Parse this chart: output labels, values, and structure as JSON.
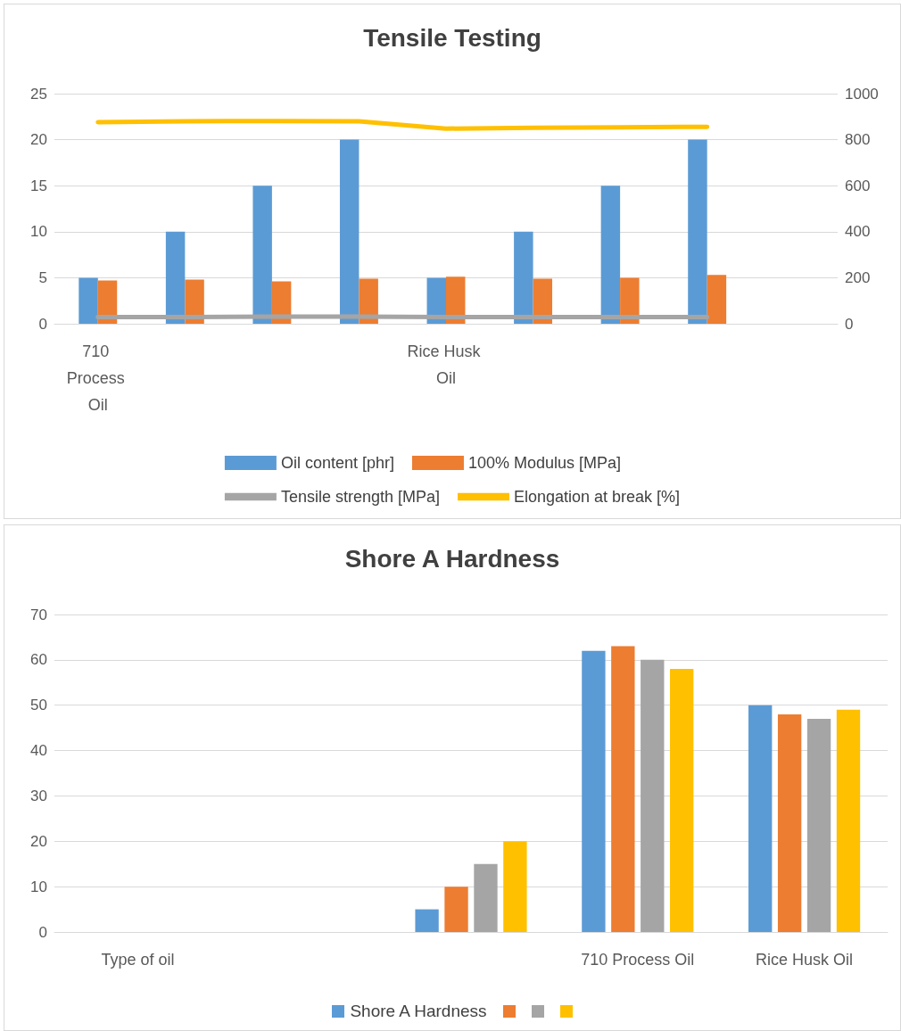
{
  "chart_data": [
    {
      "type": "bar",
      "title": "Tensile Testing",
      "categories": [
        "710 Process Oil",
        null,
        null,
        null,
        "Rice Husk Oil",
        null,
        null,
        null,
        null
      ],
      "series": [
        {
          "name": "Oil content [phr]",
          "color": "#5b9bd5",
          "values": [
            5,
            10,
            15,
            20,
            5,
            10,
            15,
            20,
            null
          ]
        },
        {
          "name": "100% Modulus [MPa]",
          "color": "#ed7d31",
          "values": [
            4.7,
            4.8,
            4.6,
            4.9,
            5.1,
            4.9,
            5.0,
            5.3,
            null
          ]
        },
        {
          "name": "Tensile strength [MPa]",
          "type": "line",
          "axis": "y2",
          "color": "#a5a5a5",
          "values": [
            29,
            29,
            31,
            31,
            29,
            29,
            29,
            29,
            null
          ]
        },
        {
          "name": "Elongation at break [%]",
          "type": "line",
          "axis": "y2",
          "color": "#ffc000",
          "values": [
            876,
            880,
            881,
            880,
            848,
            852,
            854,
            856,
            null
          ]
        }
      ],
      "ylim": [
        0,
        25
      ],
      "yticks": [
        0,
        5,
        10,
        15,
        20,
        25
      ],
      "y2lim": [
        0,
        1000
      ],
      "y2ticks": [
        0,
        200,
        400,
        600,
        800,
        1000
      ],
      "grid": "y",
      "legend": "bottom",
      "marker": "none"
    },
    {
      "type": "bar",
      "title": "Shore A Hardness",
      "categories": [
        "Type of oil",
        null,
        null,
        "710 Process Oil",
        "Rice Husk Oil"
      ],
      "series": [
        {
          "name": "Shore A Hardness",
          "color": "#5b9bd5",
          "values": [
            null,
            null,
            5,
            62,
            50
          ]
        },
        {
          "color": "#ed7d31",
          "values": [
            null,
            null,
            10,
            63,
            48
          ]
        },
        {
          "color": "#a5a5a5",
          "values": [
            null,
            null,
            15,
            60,
            47
          ]
        },
        {
          "color": "#ffc000",
          "values": [
            null,
            null,
            20,
            58,
            49
          ]
        }
      ],
      "ylim": [
        0,
        70
      ],
      "yticks": [
        0,
        10,
        20,
        30,
        40,
        50,
        60,
        70
      ],
      "grid": "y",
      "legend": "bottom"
    }
  ]
}
